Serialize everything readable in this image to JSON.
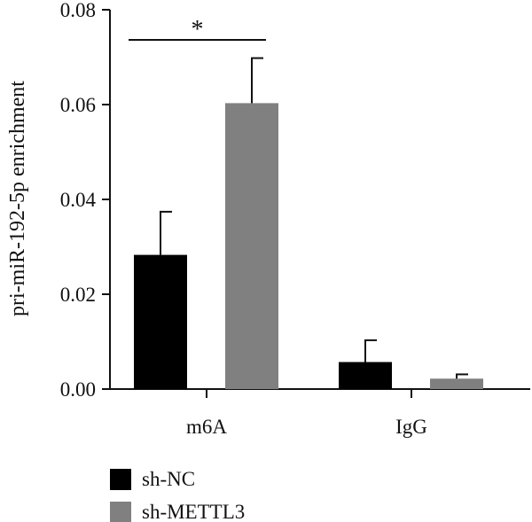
{
  "chart_data": {
    "type": "bar",
    "title": "",
    "xlabel": "",
    "ylabel": "pri-miR-192-5p enrichment",
    "ylim": [
      0,
      0.08
    ],
    "yticks": [
      "0.00",
      "0.02",
      "0.04",
      "0.06",
      "0.08"
    ],
    "grid": false,
    "legend_position": "bottom-left",
    "categories": [
      "m6A",
      "IgG"
    ],
    "series": [
      {
        "name": "sh-NC",
        "color": "#000000",
        "values": [
          0.0283,
          0.0057
        ],
        "errors": [
          0.0091,
          0.0046
        ]
      },
      {
        "name": "sh-METTL3",
        "color": "#808080",
        "values": [
          0.0603,
          0.0022
        ],
        "errors": [
          0.0095,
          0.0009
        ]
      }
    ],
    "annotations": [
      {
        "text": "*",
        "category": "m6A",
        "comparison": [
          "sh-NC",
          "sh-METTL3"
        ]
      }
    ]
  }
}
